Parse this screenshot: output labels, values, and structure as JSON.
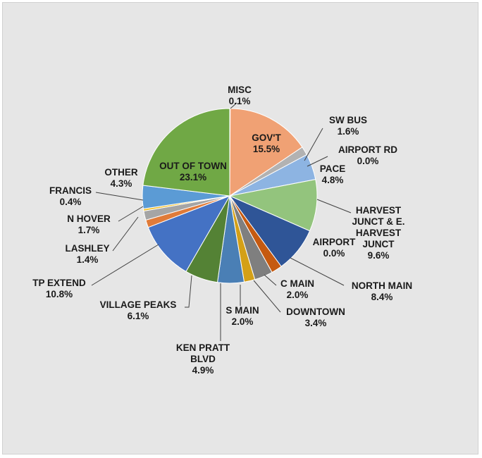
{
  "chart_data": {
    "type": "pie",
    "title": "",
    "start_angle_deg": 0,
    "direction": "clockwise",
    "slices": [
      {
        "name": "MISC",
        "label_lines": [
          "MISC",
          "0.1%"
        ],
        "value": 0.1,
        "color": "#c5c5c5"
      },
      {
        "name": "GOV'T",
        "label_lines": [
          "GOV'T",
          "15.5%"
        ],
        "value": 15.5,
        "color": "#f0a174"
      },
      {
        "name": "SW BUS",
        "label_lines": [
          "SW BUS",
          "1.6%"
        ],
        "value": 1.6,
        "color": "#b2b2b2"
      },
      {
        "name": "AIRPORT RD",
        "label_lines": [
          "AIRPORT RD",
          "0.0%"
        ],
        "value": 0.0,
        "color": "#ffd966"
      },
      {
        "name": "PACE",
        "label_lines": [
          "PACE",
          "4.8%"
        ],
        "value": 4.8,
        "color": "#8db4e2"
      },
      {
        "name": "HARVEST JUNCT & E. HARVEST JUNCT",
        "label_lines": [
          "HARVEST",
          "JUNCT & E.",
          "HARVEST",
          "JUNCT",
          "9.6%"
        ],
        "value": 9.6,
        "color": "#93c47d"
      },
      {
        "name": "AIRPORT",
        "label_lines": [
          "AIRPORT",
          "0.0%"
        ],
        "value": 0.0,
        "color": "#2e75b6"
      },
      {
        "name": "NORTH MAIN",
        "label_lines": [
          "NORTH MAIN",
          "8.4%"
        ],
        "value": 8.4,
        "color": "#2f5597"
      },
      {
        "name": "C MAIN",
        "label_lines": [
          "C MAIN",
          "2.0%"
        ],
        "value": 2.0,
        "color": "#c55a11"
      },
      {
        "name": "DOWNTOWN",
        "label_lines": [
          "DOWNTOWN",
          "3.4%"
        ],
        "value": 3.4,
        "color": "#7f7f7f"
      },
      {
        "name": "S MAIN",
        "label_lines": [
          "S MAIN",
          "2.0%"
        ],
        "value": 2.0,
        "color": "#d4a017"
      },
      {
        "name": "KEN PRATT BLVD",
        "label_lines": [
          "KEN PRATT",
          "BLVD",
          "4.9%"
        ],
        "value": 4.9,
        "color": "#4a7fb5"
      },
      {
        "name": "VILLAGE PEAKS",
        "label_lines": [
          "VILLAGE PEAKS",
          "6.1%"
        ],
        "value": 6.1,
        "color": "#548235"
      },
      {
        "name": "TP EXTEND",
        "label_lines": [
          "TP EXTEND",
          "10.8%"
        ],
        "value": 10.8,
        "color": "#4472c4"
      },
      {
        "name": "LASHLEY",
        "label_lines": [
          "LASHLEY",
          "1.4%"
        ],
        "value": 1.4,
        "color": "#e07b39"
      },
      {
        "name": "N HOVER",
        "label_lines": [
          "N HOVER",
          "1.7%"
        ],
        "value": 1.7,
        "color": "#a5a5a5"
      },
      {
        "name": "FRANCIS",
        "label_lines": [
          "FRANCIS",
          "0.4%"
        ],
        "value": 0.4,
        "color": "#f2c12e"
      },
      {
        "name": "OTHER",
        "label_lines": [
          "OTHER",
          "4.3%"
        ],
        "value": 4.3,
        "color": "#5b9bd5"
      },
      {
        "name": "OUT OF TOWN",
        "label_lines": [
          "OUT OF TOWN",
          "23.1%"
        ],
        "value": 23.1,
        "color": "#70a845"
      }
    ]
  }
}
